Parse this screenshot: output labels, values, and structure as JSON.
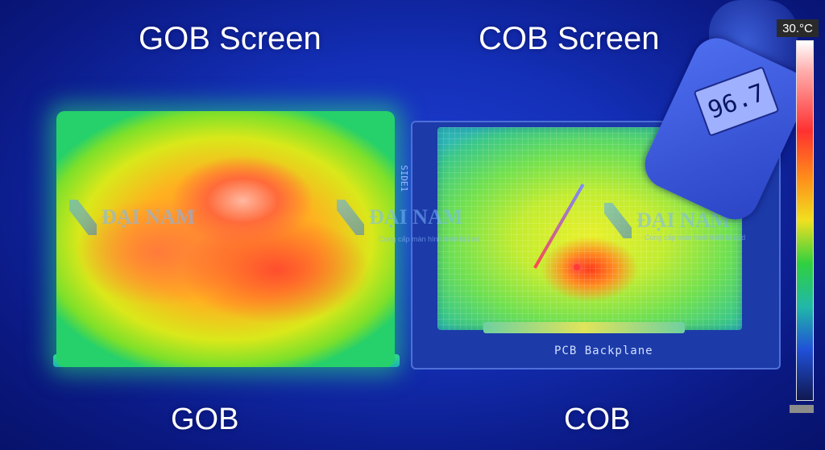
{
  "titles": {
    "left": "GOB Screen",
    "right": "COB Screen"
  },
  "labels": {
    "left": "GOB",
    "right": "COB"
  },
  "thermometer": {
    "reading": "96.7"
  },
  "scale": {
    "max_label": "30.°C"
  },
  "pcb": {
    "backplane_label": "PCB Backplane",
    "side_text": "SIDE1"
  },
  "watermark": {
    "brand": "ĐẠI NAM",
    "tagline": "Cung cấp màn hình thiết bị Led"
  },
  "colors": {
    "background": "#1430b8",
    "hot": "#ff3a1a",
    "warm": "#ffb020",
    "cool": "#26d06a"
  }
}
